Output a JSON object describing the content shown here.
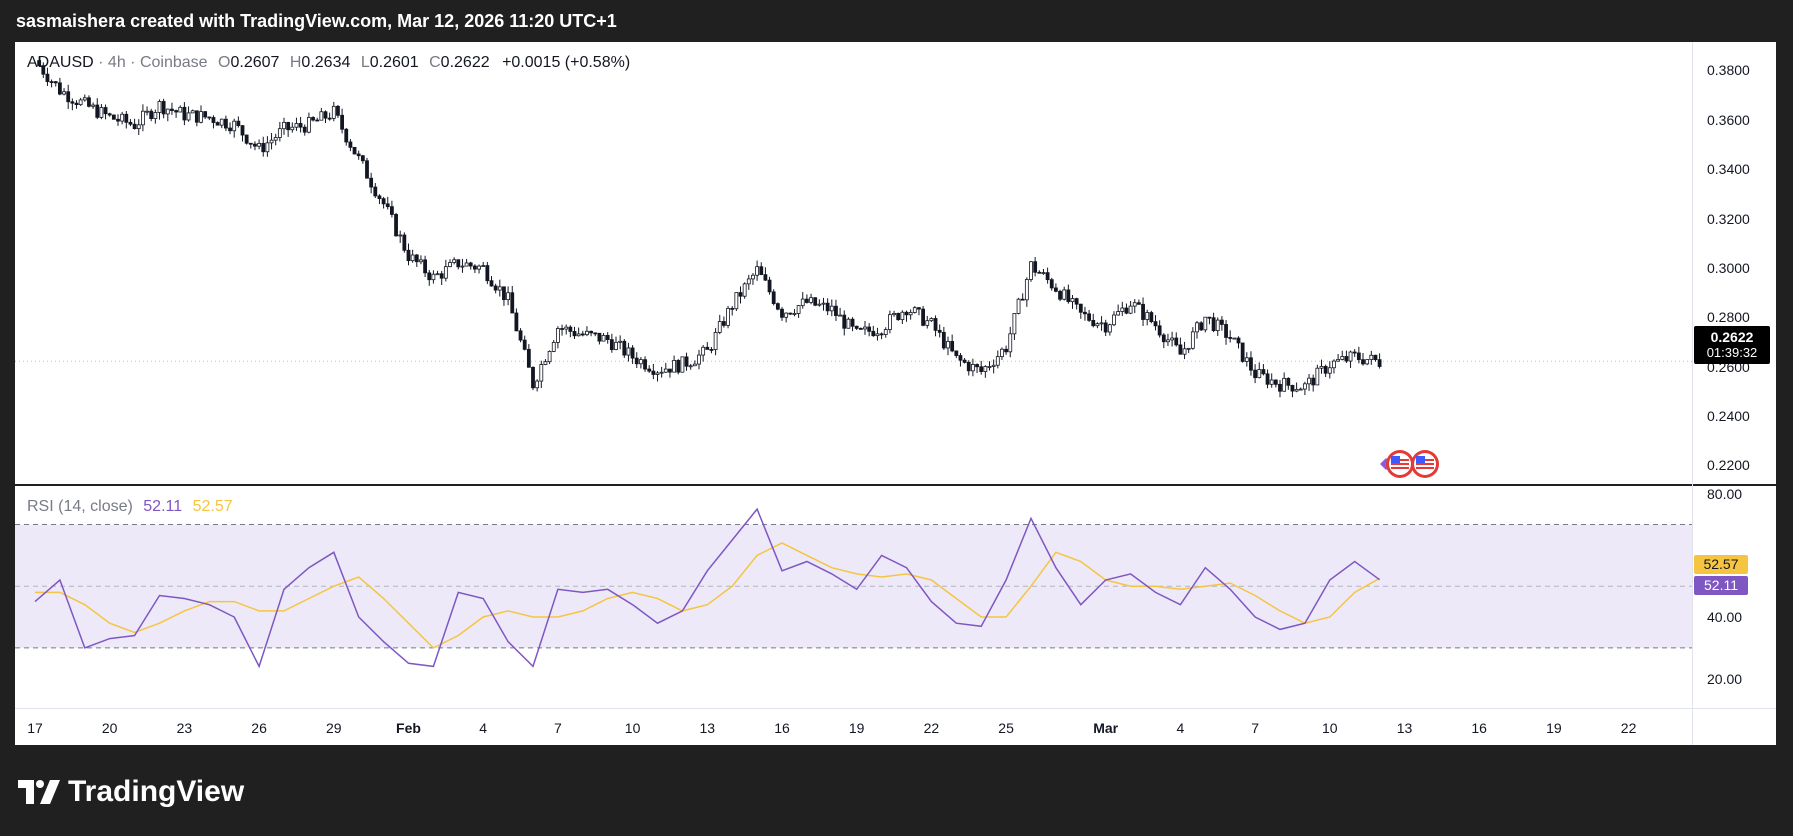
{
  "header": {
    "text": "sasmaishera created with TradingView.com, Mar 12, 2026 11:20 UTC+1"
  },
  "legend": {
    "symbol": "ADAUSD",
    "interval": "4h",
    "exchange": "Coinbase",
    "open_label": "O",
    "open": "0.2607",
    "high_label": "H",
    "high": "0.2634",
    "low_label": "L",
    "low": "0.2601",
    "close_label": "C",
    "close": "0.2622",
    "change": "+0.0015 (+0.58%)"
  },
  "last_price": {
    "price": "0.2622",
    "countdown": "01:39:32"
  },
  "rsi_legend": {
    "label": "RSI (14, close)",
    "rsi": "52.11",
    "ma": "52.57"
  },
  "colors": {
    "candle": "#131722",
    "rsi_line": "#7e57c2",
    "rsi_ma": "#f5c542",
    "rsi_band": "#ede9f8",
    "last_price_line": "#c8c86e"
  },
  "icons": [
    "us-flag-event-icon",
    "us-flag-event-icon",
    "diamond-marker-icon"
  ],
  "footer": {
    "brand": "TradingView"
  },
  "chart_data": [
    {
      "type": "candlestick",
      "title": "ADAUSD · 4h · Coinbase",
      "y_ticks": [
        "0.3800",
        "0.3600",
        "0.3400",
        "0.3200",
        "0.3000",
        "0.2800",
        "0.2600",
        "0.2400",
        "0.2200"
      ],
      "ylim": [
        0.2125,
        0.3915
      ],
      "x_ticks": [
        "17",
        "20",
        "23",
        "26",
        "29",
        "Feb",
        "4",
        "7",
        "10",
        "13",
        "16",
        "19",
        "22",
        "25",
        "Mar",
        "4",
        "7",
        "10",
        "13",
        "16",
        "19",
        "22"
      ],
      "grid": false,
      "approx_close_path": [
        [
          "Jan 17",
          0.384
        ],
        [
          "Jan 18",
          0.372
        ],
        [
          "Jan 19",
          0.366
        ],
        [
          "Jan 20",
          0.361
        ],
        [
          "Jan 21",
          0.358
        ],
        [
          "Jan 22",
          0.366
        ],
        [
          "Jan 23",
          0.362
        ],
        [
          "Jan 24",
          0.361
        ],
        [
          "Jan 25",
          0.358
        ],
        [
          "Jan 26",
          0.348
        ],
        [
          "Jan 27",
          0.356
        ],
        [
          "Jan 28",
          0.358
        ],
        [
          "Jan 29",
          0.363
        ],
        [
          "Jan 30",
          0.344
        ],
        [
          "Jan 31",
          0.326
        ],
        [
          "Feb 1",
          0.305
        ],
        [
          "Feb 2",
          0.296
        ],
        [
          "Feb 3",
          0.302
        ],
        [
          "Feb 4",
          0.3
        ],
        [
          "Feb 5",
          0.287
        ],
        [
          "Feb 6",
          0.253
        ],
        [
          "Feb 7",
          0.276
        ],
        [
          "Feb 8",
          0.273
        ],
        [
          "Feb 9",
          0.271
        ],
        [
          "Feb 10",
          0.264
        ],
        [
          "Feb 11",
          0.259
        ],
        [
          "Feb 12",
          0.261
        ],
        [
          "Feb 13",
          0.266
        ],
        [
          "Feb 14",
          0.285
        ],
        [
          "Feb 15",
          0.299
        ],
        [
          "Feb 16",
          0.282
        ],
        [
          "Feb 17",
          0.286
        ],
        [
          "Feb 18",
          0.283
        ],
        [
          "Feb 19",
          0.273
        ],
        [
          "Feb 20",
          0.276
        ],
        [
          "Feb 21",
          0.284
        ],
        [
          "Feb 22",
          0.277
        ],
        [
          "Feb 23",
          0.263
        ],
        [
          "Feb 24",
          0.258
        ],
        [
          "Feb 25",
          0.268
        ],
        [
          "Feb 26",
          0.301
        ],
        [
          "Feb 27",
          0.292
        ],
        [
          "Feb 28",
          0.281
        ],
        [
          "Mar 1",
          0.277
        ],
        [
          "Mar 2",
          0.286
        ],
        [
          "Mar 3",
          0.277
        ],
        [
          "Mar 4",
          0.265
        ],
        [
          "Mar 5",
          0.28
        ],
        [
          "Mar 6",
          0.272
        ],
        [
          "Mar 7",
          0.257
        ],
        [
          "Mar 8",
          0.253
        ],
        [
          "Mar 9",
          0.252
        ],
        [
          "Mar 10",
          0.261
        ],
        [
          "Mar 11",
          0.264
        ],
        [
          "Mar 12",
          0.262
        ]
      ],
      "last_price": 0.2622
    },
    {
      "type": "line",
      "title": "RSI (14, close)",
      "y_ticks": [
        "80.00",
        "40.00",
        "20.00"
      ],
      "ylim": [
        10.5,
        82.5
      ],
      "bands": {
        "upper": 70,
        "middle": 50,
        "lower": 30
      },
      "series": [
        {
          "name": "RSI",
          "values": [
            [
              "Jan 17",
              45
            ],
            [
              "Jan 18",
              52
            ],
            [
              "Jan 19",
              30
            ],
            [
              "Jan 20",
              33
            ],
            [
              "Jan 21",
              34
            ],
            [
              "Jan 22",
              47
            ],
            [
              "Jan 23",
              46
            ],
            [
              "Jan 24",
              44
            ],
            [
              "Jan 25",
              40
            ],
            [
              "Jan 26",
              24
            ],
            [
              "Jan 27",
              49
            ],
            [
              "Jan 28",
              56
            ],
            [
              "Jan 29",
              61
            ],
            [
              "Jan 30",
              40
            ],
            [
              "Jan 31",
              32
            ],
            [
              "Feb 1",
              25
            ],
            [
              "Feb 2",
              24
            ],
            [
              "Feb 3",
              48
            ],
            [
              "Feb 4",
              46
            ],
            [
              "Feb 5",
              32
            ],
            [
              "Feb 6",
              24
            ],
            [
              "Feb 7",
              49
            ],
            [
              "Feb 8",
              48
            ],
            [
              "Feb 9",
              49
            ],
            [
              "Feb 10",
              44
            ],
            [
              "Feb 11",
              38
            ],
            [
              "Feb 12",
              42
            ],
            [
              "Feb 13",
              55
            ],
            [
              "Feb 14",
              65
            ],
            [
              "Feb 15",
              75
            ],
            [
              "Feb 16",
              55
            ],
            [
              "Feb 17",
              58
            ],
            [
              "Feb 18",
              54
            ],
            [
              "Feb 19",
              49
            ],
            [
              "Feb 20",
              60
            ],
            [
              "Feb 21",
              56
            ],
            [
              "Feb 22",
              45
            ],
            [
              "Feb 23",
              38
            ],
            [
              "Feb 24",
              37
            ],
            [
              "Feb 25",
              52
            ],
            [
              "Feb 26",
              72
            ],
            [
              "Feb 27",
              56
            ],
            [
              "Feb 28",
              44
            ],
            [
              "Mar 1",
              52
            ],
            [
              "Mar 2",
              54
            ],
            [
              "Mar 3",
              48
            ],
            [
              "Mar 4",
              44
            ],
            [
              "Mar 5",
              56
            ],
            [
              "Mar 6",
              49
            ],
            [
              "Mar 7",
              40
            ],
            [
              "Mar 8",
              36
            ],
            [
              "Mar 9",
              38
            ],
            [
              "Mar 10",
              52
            ],
            [
              "Mar 11",
              58
            ],
            [
              "Mar 12",
              52.11
            ]
          ]
        },
        {
          "name": "RSI-based MA",
          "values": [
            [
              "Jan 17",
              48
            ],
            [
              "Jan 18",
              48
            ],
            [
              "Jan 19",
              44
            ],
            [
              "Jan 20",
              38
            ],
            [
              "Jan 21",
              35
            ],
            [
              "Jan 22",
              38
            ],
            [
              "Jan 23",
              42
            ],
            [
              "Jan 24",
              45
            ],
            [
              "Jan 25",
              45
            ],
            [
              "Jan 26",
              42
            ],
            [
              "Jan 27",
              42
            ],
            [
              "Jan 28",
              46
            ],
            [
              "Jan 29",
              50
            ],
            [
              "Jan 30",
              53
            ],
            [
              "Jan 31",
              46
            ],
            [
              "Feb 1",
              38
            ],
            [
              "Feb 2",
              30
            ],
            [
              "Feb 3",
              34
            ],
            [
              "Feb 4",
              40
            ],
            [
              "Feb 5",
              42
            ],
            [
              "Feb 6",
              40
            ],
            [
              "Feb 7",
              40
            ],
            [
              "Feb 8",
              42
            ],
            [
              "Feb 9",
              46
            ],
            [
              "Feb 10",
              48
            ],
            [
              "Feb 11",
              46
            ],
            [
              "Feb 12",
              42
            ],
            [
              "Feb 13",
              44
            ],
            [
              "Feb 14",
              50
            ],
            [
              "Feb 15",
              60
            ],
            [
              "Feb 16",
              64
            ],
            [
              "Feb 17",
              60
            ],
            [
              "Feb 18",
              56
            ],
            [
              "Feb 19",
              54
            ],
            [
              "Feb 20",
              53
            ],
            [
              "Feb 21",
              54
            ],
            [
              "Feb 22",
              52
            ],
            [
              "Feb 23",
              46
            ],
            [
              "Feb 24",
              40
            ],
            [
              "Feb 25",
              40
            ],
            [
              "Feb 26",
              50
            ],
            [
              "Feb 27",
              61
            ],
            [
              "Feb 28",
              58
            ],
            [
              "Mar 1",
              52
            ],
            [
              "Mar 2",
              50
            ],
            [
              "Mar 3",
              50
            ],
            [
              "Mar 4",
              49
            ],
            [
              "Mar 5",
              50
            ],
            [
              "Mar 6",
              51
            ],
            [
              "Mar 7",
              47
            ],
            [
              "Mar 8",
              42
            ],
            [
              "Mar 9",
              38
            ],
            [
              "Mar 10",
              40
            ],
            [
              "Mar 11",
              48
            ],
            [
              "Mar 12",
              52.57
            ]
          ]
        }
      ]
    }
  ]
}
